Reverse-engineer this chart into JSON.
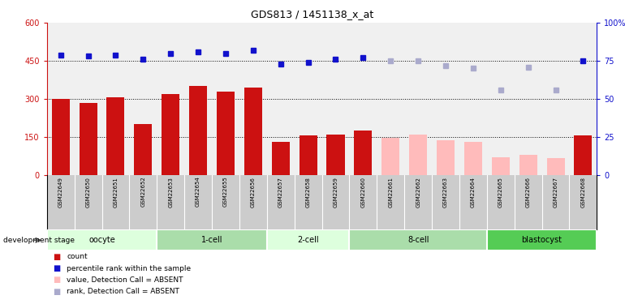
{
  "title": "GDS813 / 1451138_x_at",
  "samples": [
    "GSM22649",
    "GSM22650",
    "GSM22651",
    "GSM22652",
    "GSM22653",
    "GSM22654",
    "GSM22655",
    "GSM22656",
    "GSM22657",
    "GSM22658",
    "GSM22659",
    "GSM22660",
    "GSM22661",
    "GSM22662",
    "GSM22663",
    "GSM22664",
    "GSM22665",
    "GSM22666",
    "GSM22667",
    "GSM22668"
  ],
  "bar_values": [
    300,
    285,
    305,
    200,
    320,
    350,
    330,
    345,
    130,
    155,
    160,
    175,
    145,
    160,
    135,
    130,
    70,
    80,
    65,
    155
  ],
  "bar_absent": [
    false,
    false,
    false,
    false,
    false,
    false,
    false,
    false,
    false,
    false,
    false,
    false,
    true,
    true,
    true,
    true,
    true,
    true,
    true,
    false
  ],
  "rank_values": [
    79,
    78,
    79,
    76,
    80,
    81,
    80,
    82,
    73,
    74,
    76,
    77,
    75,
    75,
    72,
    70,
    56,
    71,
    56,
    75
  ],
  "rank_absent": [
    false,
    false,
    false,
    false,
    false,
    false,
    false,
    false,
    false,
    false,
    false,
    false,
    true,
    true,
    true,
    true,
    true,
    true,
    true,
    false
  ],
  "stages": [
    {
      "label": "oocyte",
      "start": 0,
      "end": 3
    },
    {
      "label": "1-cell",
      "start": 4,
      "end": 7
    },
    {
      "label": "2-cell",
      "start": 8,
      "end": 10
    },
    {
      "label": "8-cell",
      "start": 11,
      "end": 15
    },
    {
      "label": "blastocyst",
      "start": 16,
      "end": 19
    }
  ],
  "stage_colors": [
    "#ddffdd",
    "#aaddaa",
    "#ddffdd",
    "#aaddaa",
    "#55cc55"
  ],
  "bar_color_present": "#cc1111",
  "bar_color_absent": "#ffbbbb",
  "rank_color_present": "#1111cc",
  "rank_color_absent": "#aaaacc",
  "ylim_left": [
    0,
    600
  ],
  "ylim_right": [
    0,
    100
  ],
  "yticks_left": [
    0,
    150,
    300,
    450,
    600
  ],
  "yticks_right": [
    0,
    25,
    50,
    75,
    100
  ],
  "ytick_labels_right": [
    "0",
    "25",
    "50",
    "75",
    "100%"
  ],
  "hlines": [
    150,
    300,
    450
  ],
  "plot_bg": "#f0f0f0"
}
